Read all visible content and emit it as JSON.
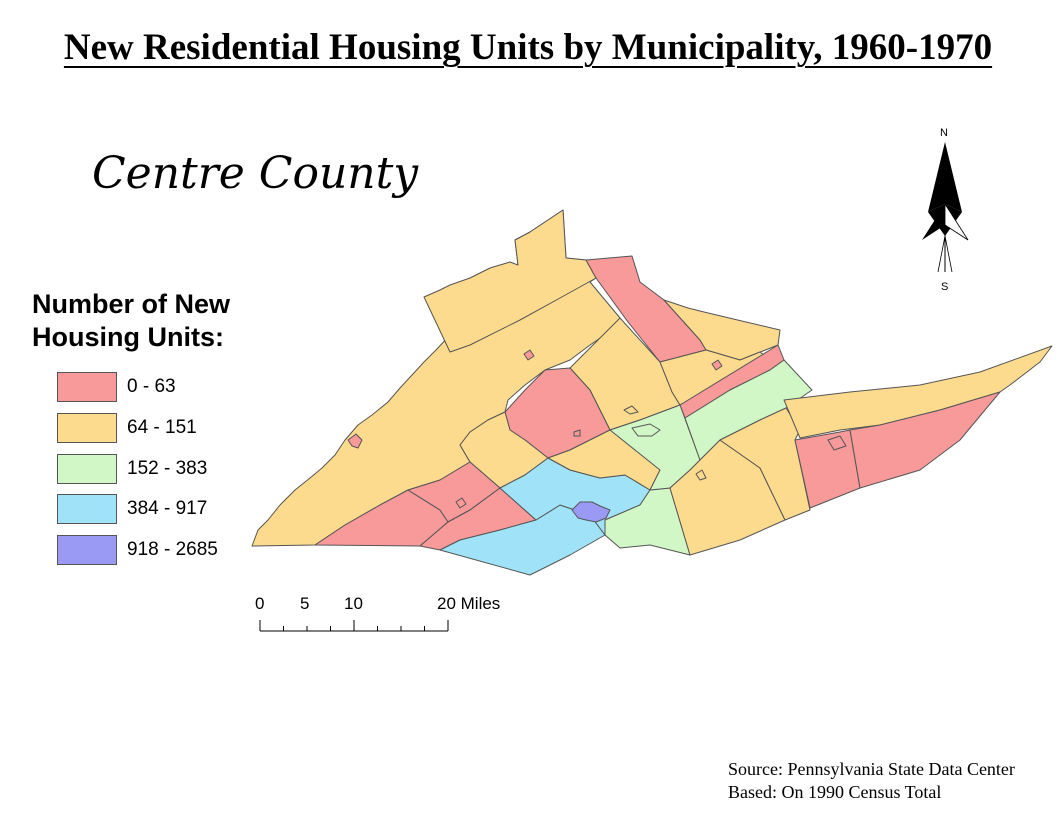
{
  "title": "New Residential Housing Units by Municipality, 1960-1970",
  "county_label": "Centre County",
  "legend": {
    "title": "Number of New Housing Units:",
    "classes": [
      {
        "label": "0 - 63",
        "color": "#f8999a"
      },
      {
        "label": "64 - 151",
        "color": "#fddb8e"
      },
      {
        "label": "152 - 383",
        "color": "#d2f7c6"
      },
      {
        "label": "384 - 917",
        "color": "#a0e3f8"
      },
      {
        "label": "918 - 2685",
        "color": "#9a9af5"
      }
    ]
  },
  "scale_bar": {
    "ticks": [
      "0",
      "5",
      "10",
      "20 Miles"
    ]
  },
  "north_arrow": {
    "north_label": "N",
    "south_label": "S"
  },
  "source": {
    "line1": "Source: Pennsylvania State Data Center",
    "line2": "Based: On 1990 Census Total"
  }
}
